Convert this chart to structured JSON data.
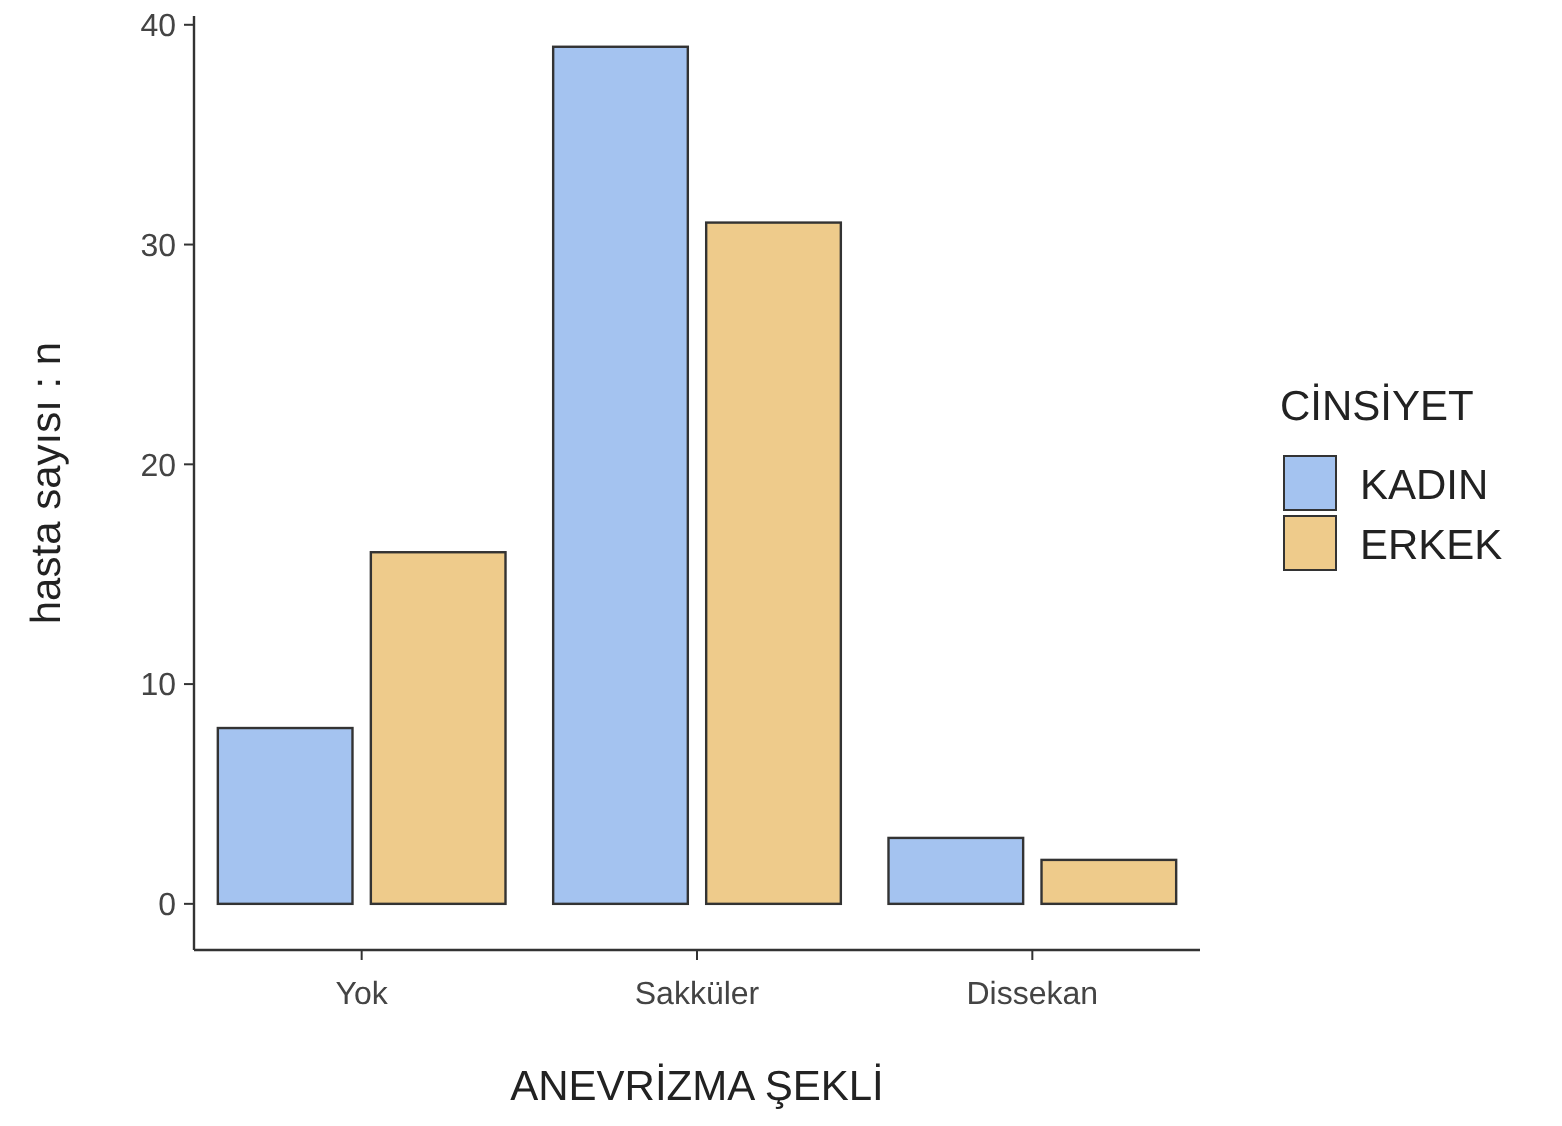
{
  "chart_data": {
    "type": "bar",
    "xlabel": "ANEVRİZMA ŞEKLİ",
    "ylabel": "hasta sayısı : n",
    "legend_title": "CİNSİYET",
    "legend": "right",
    "grid": false,
    "categories": [
      "Yok",
      "Sakküler",
      "Dissekan"
    ],
    "series": [
      {
        "name": "KADIN",
        "color": "#a4c3f0",
        "values": [
          8,
          39,
          3
        ]
      },
      {
        "name": "ERKEK",
        "color": "#eecb8b",
        "values": [
          16,
          31,
          2
        ]
      }
    ],
    "ylim": [
      -2.1,
      40.4
    ],
    "yticks": [
      0,
      10,
      20,
      30,
      40
    ]
  }
}
